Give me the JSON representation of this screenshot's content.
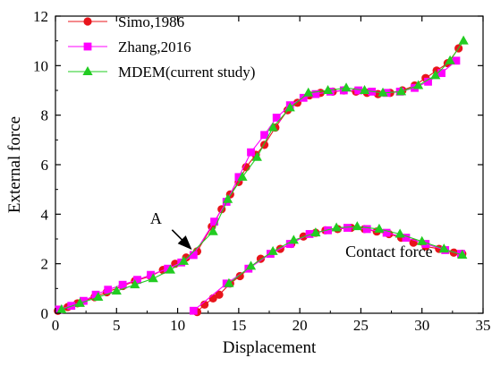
{
  "chart_data": {
    "type": "line",
    "xlabel": "Displacement",
    "ylabel": "External force",
    "xlim": [
      0,
      35
    ],
    "ylim": [
      0,
      12
    ],
    "x_ticks": [
      0,
      5,
      10,
      15,
      20,
      25,
      30,
      35
    ],
    "y_ticks": [
      0,
      2,
      4,
      6,
      8,
      10,
      12
    ],
    "grid": false,
    "legend_position": "top-left",
    "series": [
      {
        "name": "Simo,1986",
        "color": "#e8141b",
        "marker": "circle",
        "x": [
          0.2,
          1.0,
          1.8,
          3.2,
          4.2,
          5.5,
          6.5,
          7.8,
          8.8,
          9.8,
          10.7,
          11.6,
          12.8,
          13.6,
          14.3,
          15.0,
          15.6,
          16.4,
          17.1,
          18.0,
          19.0,
          19.8,
          20.8,
          21.7,
          22.7,
          23.6,
          24.6,
          25.5,
          26.4,
          27.4,
          28.4,
          29.4,
          30.3,
          31.2,
          32.1,
          33.0
        ],
        "y": [
          0.1,
          0.25,
          0.4,
          0.65,
          0.85,
          1.1,
          1.3,
          1.5,
          1.75,
          2.0,
          2.25,
          2.5,
          3.5,
          4.2,
          4.8,
          5.3,
          5.9,
          6.4,
          6.8,
          7.5,
          8.2,
          8.5,
          8.8,
          8.9,
          8.95,
          9.0,
          8.95,
          8.9,
          8.85,
          8.9,
          9.0,
          9.2,
          9.5,
          9.8,
          10.1,
          10.7
        ]
      },
      {
        "name": "Zhang,2016",
        "color": "#ff00ff",
        "marker": "square",
        "x": [
          0.3,
          1.3,
          2.3,
          3.3,
          4.3,
          5.5,
          6.7,
          7.8,
          9.2,
          10.3,
          11.3,
          13.0,
          14.0,
          15.0,
          16.0,
          17.1,
          18.1,
          19.2,
          20.3,
          21.3,
          22.5,
          23.6,
          24.8,
          25.9,
          27.1,
          28.2,
          29.4,
          30.5,
          31.6,
          32.8
        ],
        "y": [
          0.15,
          0.3,
          0.5,
          0.75,
          0.95,
          1.15,
          1.35,
          1.55,
          1.8,
          2.05,
          2.35,
          3.7,
          4.5,
          5.5,
          6.5,
          7.2,
          7.9,
          8.4,
          8.7,
          8.85,
          8.95,
          9.0,
          9.0,
          8.95,
          8.9,
          8.95,
          9.1,
          9.35,
          9.7,
          10.2
        ]
      },
      {
        "name": "MDEM(current study)",
        "color": "#22cc22",
        "marker": "triangle",
        "x": [
          0.5,
          2.0,
          3.5,
          5.0,
          6.5,
          8.0,
          9.4,
          10.5,
          12.9,
          14.1,
          15.3,
          16.5,
          17.8,
          19.2,
          20.7,
          22.3,
          23.8,
          25.3,
          26.8,
          28.3,
          29.7,
          31.1,
          32.3,
          33.4
        ],
        "y": [
          0.15,
          0.4,
          0.65,
          0.9,
          1.15,
          1.4,
          1.75,
          2.1,
          3.3,
          4.6,
          5.5,
          6.3,
          7.5,
          8.3,
          8.9,
          9.0,
          9.1,
          9.0,
          8.9,
          8.95,
          9.2,
          9.6,
          10.2,
          11.0
        ]
      },
      {
        "name": "Contact force (Simo,1986)",
        "color": "#e8141b",
        "marker": "circle",
        "x": [
          11.6,
          12.2,
          12.9,
          13.4,
          14.3,
          15.1,
          16.8,
          18.4,
          19.3,
          20.3,
          21.3,
          22.1,
          23.1,
          24.2,
          25.3,
          26.3,
          27.3,
          28.3,
          29.3,
          30.3,
          31.4,
          32.6,
          33.3
        ],
        "y": [
          0.05,
          0.35,
          0.6,
          0.75,
          1.2,
          1.5,
          2.2,
          2.6,
          2.8,
          3.1,
          3.25,
          3.35,
          3.4,
          3.45,
          3.4,
          3.3,
          3.2,
          3.05,
          2.85,
          2.7,
          2.6,
          2.45,
          2.4
        ]
      },
      {
        "name": "Contact force (Zhang,2016)",
        "color": "#ff00ff",
        "marker": "square",
        "x": [
          11.3,
          14.0,
          15.8,
          17.6,
          19.2,
          20.8,
          22.3,
          23.9,
          25.5,
          27.1,
          28.7,
          30.3,
          31.9,
          33.2
        ],
        "y": [
          0.1,
          1.2,
          1.8,
          2.4,
          2.8,
          3.2,
          3.35,
          3.45,
          3.4,
          3.25,
          3.05,
          2.8,
          2.55,
          2.4
        ]
      },
      {
        "name": "Contact force (MDEM(current study))",
        "color": "#22cc22",
        "marker": "triangle",
        "x": [
          14.2,
          16.0,
          17.8,
          19.5,
          21.3,
          23.0,
          24.7,
          26.5,
          28.2,
          30.0,
          31.8,
          33.3
        ],
        "y": [
          1.2,
          1.9,
          2.5,
          2.95,
          3.25,
          3.45,
          3.5,
          3.4,
          3.2,
          2.9,
          2.6,
          2.35
        ]
      }
    ],
    "annotations": [
      {
        "text": "A",
        "x": 11.3,
        "y": 2.5,
        "kind": "arrow"
      },
      {
        "text": "Contact force",
        "x": 27.3,
        "y": 2.5,
        "kind": "label"
      }
    ]
  }
}
